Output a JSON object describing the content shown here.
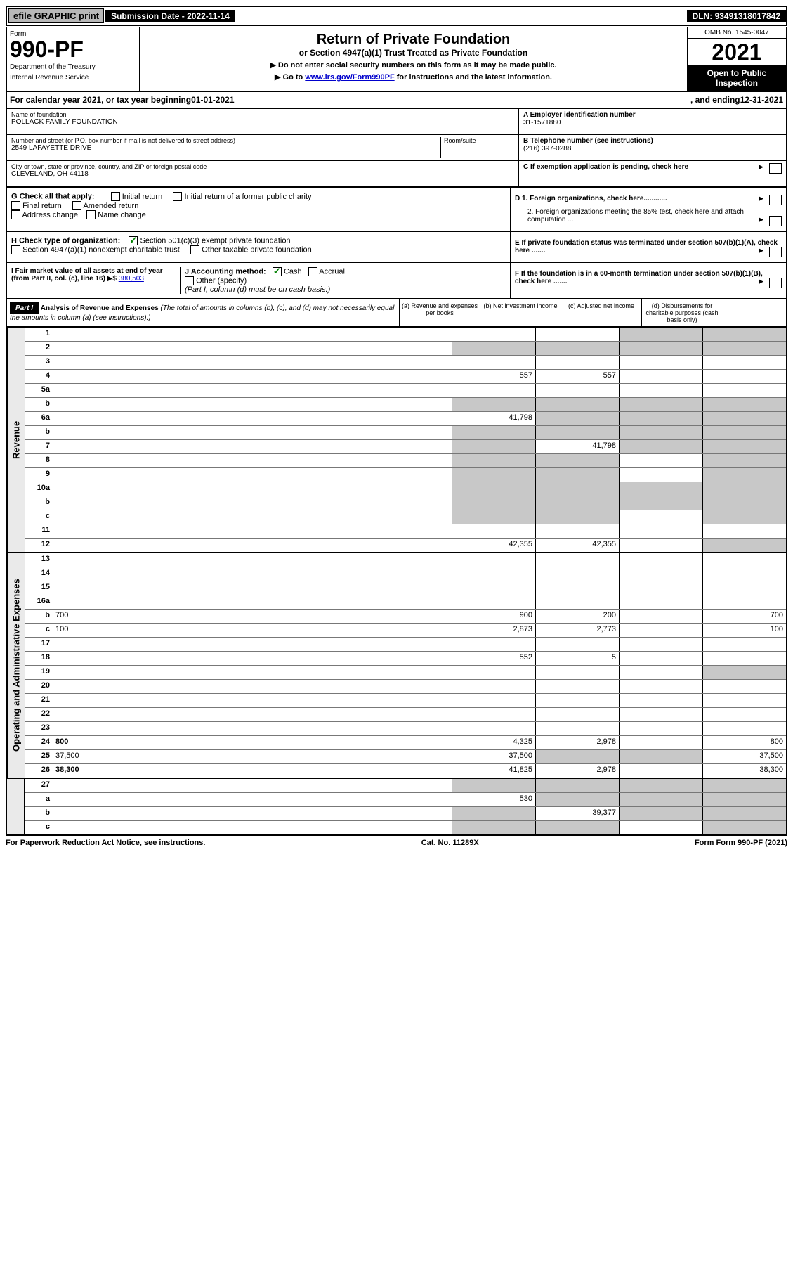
{
  "top": {
    "efile": "efile GRAPHIC print",
    "subdate_label": "Submission Date - ",
    "subdate": "2022-11-14",
    "dln_label": "DLN: ",
    "dln": "93491318017842"
  },
  "header": {
    "form_label": "Form",
    "form_num": "990-PF",
    "dept1": "Department of the Treasury",
    "dept2": "Internal Revenue Service",
    "title": "Return of Private Foundation",
    "sub": "or Section 4947(a)(1) Trust Treated as Private Foundation",
    "note1": "▶ Do not enter social security numbers on this form as it may be made public.",
    "note2_pre": "▶ Go to ",
    "note2_link": "www.irs.gov/Form990PF",
    "note2_post": " for instructions and the latest information.",
    "omb": "OMB No. 1545-0047",
    "year": "2021",
    "open": "Open to Public Inspection"
  },
  "calyear": {
    "pre": "For calendar year 2021, or tax year beginning ",
    "begin": "01-01-2021",
    "mid": ", and ending ",
    "end": "12-31-2021"
  },
  "info": {
    "name_label": "Name of foundation",
    "name": "POLLACK FAMILY FOUNDATION",
    "addr_label": "Number and street (or P.O. box number if mail is not delivered to street address)",
    "room_label": "Room/suite",
    "addr": "2549 LAFAYETTE DRIVE",
    "city_label": "City or town, state or province, country, and ZIP or foreign postal code",
    "city": "CLEVELAND, OH  44118",
    "ein_label": "A Employer identification number",
    "ein": "31-1571880",
    "tel_label": "B Telephone number (see instructions)",
    "tel": "(216) 397-0288",
    "c_label": "C If exemption application is pending, check here",
    "d1": "D 1. Foreign organizations, check here............",
    "d2": "2. Foreign organizations meeting the 85% test, check here and attach computation ...",
    "e": "E If private foundation status was terminated under section 507(b)(1)(A), check here .......",
    "f": "F If the foundation is in a 60-month termination under section 507(b)(1)(B), check here ......."
  },
  "g": {
    "label": "G Check all that apply:",
    "items": [
      "Initial return",
      "Initial return of a former public charity",
      "Final return",
      "Amended return",
      "Address change",
      "Name change"
    ]
  },
  "h": {
    "label": "H Check type of organization:",
    "i1": "Section 501(c)(3) exempt private foundation",
    "i2": "Section 4947(a)(1) nonexempt charitable trust",
    "i3": "Other taxable private foundation"
  },
  "i": {
    "label": "I Fair market value of all assets at end of year (from Part II, col. (c), line 16)",
    "val": "380,503"
  },
  "j": {
    "label": "J Accounting method:",
    "i1": "Cash",
    "i2": "Accrual",
    "i3": "Other (specify)",
    "note": "(Part I, column (d) must be on cash basis.)"
  },
  "part1": {
    "label": "Part I",
    "title": "Analysis of Revenue and Expenses",
    "note": "(The total of amounts in columns (b), (c), and (d) may not necessarily equal the amounts in column (a) (see instructions).)",
    "ca": "(a) Revenue and expenses per books",
    "cb": "(b) Net investment income",
    "cc": "(c) Adjusted net income",
    "cd": "(d) Disbursements for charitable purposes (cash basis only)"
  },
  "vtabs": {
    "rev": "Revenue",
    "exp": "Operating and Administrative Expenses"
  },
  "rows": [
    {
      "n": "1",
      "d": "",
      "a": "",
      "b": "",
      "c": "",
      "cg": true,
      "dg": true
    },
    {
      "n": "2",
      "d": "",
      "a": "",
      "b": "",
      "c": "",
      "ag": true,
      "bg": true,
      "cg": true,
      "dg": true,
      "bold": false
    },
    {
      "n": "3",
      "d": "",
      "a": "",
      "b": "",
      "c": ""
    },
    {
      "n": "4",
      "d": "",
      "a": "557",
      "b": "557",
      "c": ""
    },
    {
      "n": "5a",
      "d": "",
      "a": "",
      "b": "",
      "c": ""
    },
    {
      "n": "b",
      "d": "",
      "a": "",
      "b": "",
      "c": "",
      "ag": true,
      "bg": true,
      "cg": true,
      "dg": true
    },
    {
      "n": "6a",
      "d": "",
      "a": "41,798",
      "b": "",
      "c": "",
      "bg": true,
      "cg": true,
      "dg": true
    },
    {
      "n": "b",
      "d": "",
      "a": "",
      "b": "",
      "c": "",
      "ag": true,
      "bg": true,
      "cg": true,
      "dg": true
    },
    {
      "n": "7",
      "d": "",
      "a": "",
      "b": "41,798",
      "c": "",
      "ag": true,
      "cg": true,
      "dg": true
    },
    {
      "n": "8",
      "d": "",
      "a": "",
      "b": "",
      "c": "",
      "ag": true,
      "bg": true,
      "dg": true
    },
    {
      "n": "9",
      "d": "",
      "a": "",
      "b": "",
      "c": "",
      "ag": true,
      "bg": true,
      "dg": true
    },
    {
      "n": "10a",
      "d": "",
      "a": "",
      "b": "",
      "c": "",
      "ag": true,
      "bg": true,
      "cg": true,
      "dg": true
    },
    {
      "n": "b",
      "d": "",
      "a": "",
      "b": "",
      "c": "",
      "ag": true,
      "bg": true,
      "cg": true,
      "dg": true
    },
    {
      "n": "c",
      "d": "",
      "a": "",
      "b": "",
      "c": "",
      "ag": true,
      "bg": true,
      "dg": true
    },
    {
      "n": "11",
      "d": "",
      "a": "",
      "b": "",
      "c": ""
    },
    {
      "n": "12",
      "d": "",
      "a": "42,355",
      "b": "42,355",
      "c": "",
      "bold": true,
      "dg": true
    }
  ],
  "exprows": [
    {
      "n": "13",
      "d": "",
      "a": "",
      "b": "",
      "c": ""
    },
    {
      "n": "14",
      "d": "",
      "a": "",
      "b": "",
      "c": ""
    },
    {
      "n": "15",
      "d": "",
      "a": "",
      "b": "",
      "c": ""
    },
    {
      "n": "16a",
      "d": "",
      "a": "",
      "b": "",
      "c": ""
    },
    {
      "n": "b",
      "d": "700",
      "a": "900",
      "b": "200",
      "c": ""
    },
    {
      "n": "c",
      "d": "100",
      "a": "2,873",
      "b": "2,773",
      "c": ""
    },
    {
      "n": "17",
      "d": "",
      "a": "",
      "b": "",
      "c": ""
    },
    {
      "n": "18",
      "d": "",
      "a": "552",
      "b": "5",
      "c": ""
    },
    {
      "n": "19",
      "d": "",
      "a": "",
      "b": "",
      "c": "",
      "dg": true
    },
    {
      "n": "20",
      "d": "",
      "a": "",
      "b": "",
      "c": ""
    },
    {
      "n": "21",
      "d": "",
      "a": "",
      "b": "",
      "c": ""
    },
    {
      "n": "22",
      "d": "",
      "a": "",
      "b": "",
      "c": ""
    },
    {
      "n": "23",
      "d": "",
      "a": "",
      "b": "",
      "c": ""
    },
    {
      "n": "24",
      "d": "800",
      "a": "4,325",
      "b": "2,978",
      "c": "",
      "bold": true
    },
    {
      "n": "25",
      "d": "37,500",
      "a": "37,500",
      "b": "",
      "c": "",
      "bg": true,
      "cg": true
    },
    {
      "n": "26",
      "d": "38,300",
      "a": "41,825",
      "b": "2,978",
      "c": "",
      "bold": true
    }
  ],
  "botrows": [
    {
      "n": "27",
      "d": "",
      "a": "",
      "b": "",
      "c": "",
      "ag": true,
      "bg": true,
      "cg": true,
      "dg": true
    },
    {
      "n": "a",
      "d": "",
      "a": "530",
      "b": "",
      "c": "",
      "bold": true,
      "bg": true,
      "cg": true,
      "dg": true
    },
    {
      "n": "b",
      "d": "",
      "a": "",
      "b": "39,377",
      "c": "",
      "bold": true,
      "ag": true,
      "cg": true,
      "dg": true
    },
    {
      "n": "c",
      "d": "",
      "a": "",
      "b": "",
      "c": "",
      "bold": true,
      "ag": true,
      "bg": true,
      "dg": true
    }
  ],
  "footer": {
    "left": "For Paperwork Reduction Act Notice, see instructions.",
    "mid": "Cat. No. 11289X",
    "right": "Form 990-PF (2021)"
  }
}
